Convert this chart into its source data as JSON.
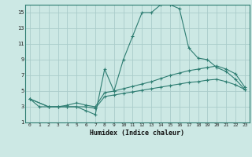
{
  "xlabel": "Humidex (Indice chaleur)",
  "background_color": "#cce8e4",
  "grid_color": "#aaccca",
  "line_color": "#2e7d72",
  "xlim": [
    -0.5,
    23.5
  ],
  "ylim": [
    1,
    16
  ],
  "xticks": [
    0,
    1,
    2,
    3,
    4,
    5,
    6,
    7,
    8,
    9,
    10,
    11,
    12,
    13,
    14,
    15,
    16,
    17,
    18,
    19,
    20,
    21,
    22,
    23
  ],
  "yticks": [
    1,
    3,
    5,
    7,
    9,
    11,
    13,
    15
  ],
  "line1_x": [
    0,
    1,
    2,
    3,
    4,
    5,
    6,
    7,
    8,
    9,
    10,
    11,
    12,
    13,
    14,
    15,
    16,
    17,
    18,
    19,
    20,
    21,
    22,
    23
  ],
  "line1_y": [
    4,
    3,
    3,
    3,
    3,
    3,
    2.5,
    2,
    7.8,
    5,
    9,
    12,
    15,
    15,
    16,
    16,
    15.5,
    10.5,
    9.2,
    9,
    8,
    7.5,
    6.5,
    5.2
  ],
  "line2_x": [
    0,
    2,
    3,
    4,
    5,
    6,
    7,
    8,
    9,
    10,
    11,
    12,
    13,
    14,
    15,
    16,
    17,
    18,
    19,
    20,
    21,
    22,
    23
  ],
  "line2_y": [
    4,
    3,
    3,
    3.2,
    3.5,
    3.2,
    3,
    4.8,
    5.0,
    5.3,
    5.6,
    5.9,
    6.2,
    6.6,
    7.0,
    7.3,
    7.6,
    7.8,
    8.0,
    8.2,
    7.8,
    7.2,
    5.5
  ],
  "line3_x": [
    0,
    2,
    3,
    4,
    5,
    6,
    7,
    8,
    9,
    10,
    11,
    12,
    13,
    14,
    15,
    16,
    17,
    18,
    19,
    20,
    21,
    22,
    23
  ],
  "line3_y": [
    4,
    3,
    3,
    3,
    3,
    3,
    2.8,
    4.3,
    4.5,
    4.7,
    4.9,
    5.1,
    5.3,
    5.5,
    5.7,
    5.9,
    6.1,
    6.2,
    6.4,
    6.5,
    6.2,
    5.8,
    5.2
  ]
}
